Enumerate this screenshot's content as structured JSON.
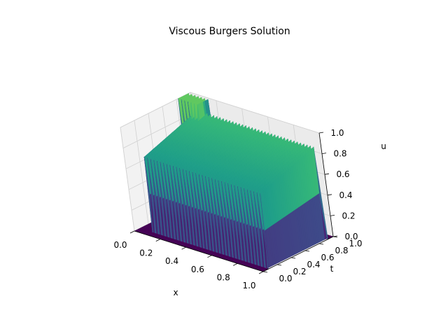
{
  "chart_data": {
    "type": "surface3d",
    "title": "Viscous Burgers Solution",
    "xlabel": "x",
    "ylabel": "t",
    "zlabel": "u",
    "xlim": [
      0,
      1
    ],
    "ylim": [
      0,
      1
    ],
    "zlim": [
      0,
      1
    ],
    "x_ticks": [
      "0.0",
      "0.2",
      "0.4",
      "0.6",
      "0.8",
      "1.0"
    ],
    "y_ticks": [
      "0.0",
      "0.2",
      "0.4",
      "0.6",
      "0.8",
      "1.0"
    ],
    "z_ticks": [
      "0.0",
      "0.2",
      "0.4",
      "0.6",
      "0.8",
      "1.0"
    ],
    "colormap": "viridis",
    "grid": true,
    "surface_features": {
      "plateau_x_range": [
        0.1,
        1.0
      ],
      "plateau_t_range": [
        0.1,
        0.9
      ],
      "plateau_u_max": 0.9,
      "back_spike_x_range": [
        0.0,
        0.15
      ],
      "back_spike_t": 0.9,
      "back_spike_u_max": 1.0,
      "oscillation_count": 40
    }
  }
}
